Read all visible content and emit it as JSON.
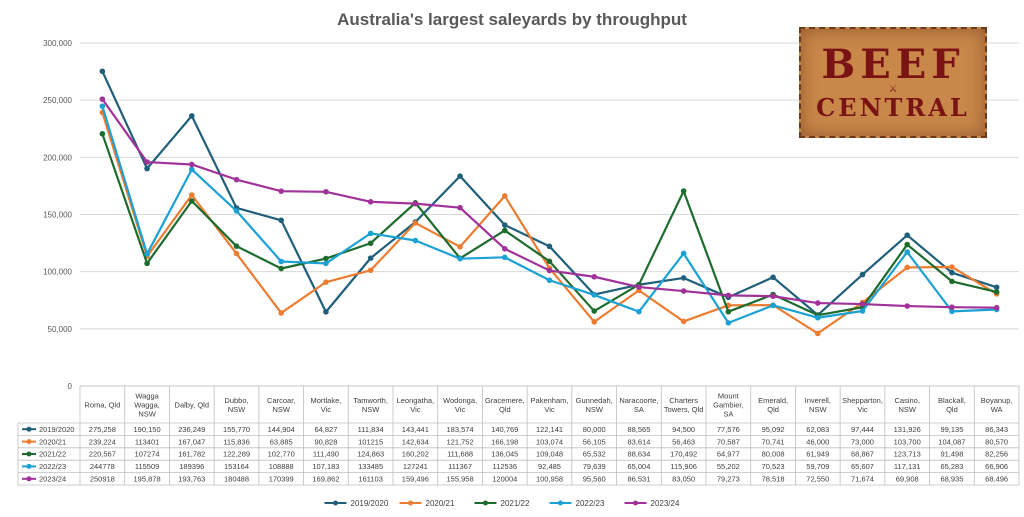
{
  "logo": {
    "line1": "BEEF",
    "line2": "CENTRAL"
  },
  "colors": {
    "2019/2020": "#1f5f7a",
    "2020/21": "#ec7c30",
    "2021/22": "#1e6b2e",
    "2022/23": "#1ba1d3",
    "2023/24": "#a1329a",
    "grid": "#d9d9d9",
    "axis_text": "#595959"
  },
  "chart_data": {
    "type": "line",
    "title": "Australia's largest saleyards by throughput",
    "xlabel": "",
    "ylabel": "",
    "ylim": [
      0,
      300000
    ],
    "yticks": [
      0,
      50000,
      100000,
      150000,
      200000,
      250000,
      300000
    ],
    "ytick_labels": [
      "0",
      "50,000",
      "100,000",
      "150,000",
      "200,000",
      "250,000",
      "300,000"
    ],
    "grid": true,
    "legend": "bottom",
    "categories": [
      "Roma, Qld",
      "Wagga Wagga, NSW",
      "Dalby, Qld",
      "Dubbo, NSW",
      "Carcoar, NSW",
      "Mortlake, Vic",
      "Tamworth, NSW",
      "Leongatha, Vic",
      "Wodonga, Vic",
      "Gracemere, Qld",
      "Pakenham, Vic",
      "Gunnedah, NSW",
      "Naracoorte, SA",
      "Charters Towers, Qld",
      "Mount Gambier, SA",
      "Emerald, Qld",
      "Inverell, NSW",
      "Shepparton, Vic",
      "Casino, NSW",
      "Blackall, Qld",
      "Boyanup, WA"
    ],
    "category_lines": [
      [
        "Roma, Qld"
      ],
      [
        "Wagga",
        "Wagga,",
        "NSW"
      ],
      [
        "Dalby, Qld"
      ],
      [
        "Dubbo,",
        "NSW"
      ],
      [
        "Carcoar,",
        "NSW"
      ],
      [
        "Mortlake,",
        "Vic"
      ],
      [
        "Tamworth,",
        "NSW"
      ],
      [
        "Leongatha,",
        "Vic"
      ],
      [
        "Wodonga,",
        "Vic"
      ],
      [
        "Gracemere,",
        "Qld"
      ],
      [
        "Pakenham,",
        "Vic"
      ],
      [
        "Gunnedah,",
        "NSW"
      ],
      [
        "Naracoorte,",
        "SA"
      ],
      [
        "Charters",
        "Towers, Qld"
      ],
      [
        "Mount",
        "Gambier,",
        "SA"
      ],
      [
        "Emerald,",
        "Qld"
      ],
      [
        "Inverell,",
        "NSW"
      ],
      [
        "Shepparton,",
        "Vic"
      ],
      [
        "Casino,",
        "NSW"
      ],
      [
        "Blackall,",
        "Qld"
      ],
      [
        "Boyanup,",
        "WA"
      ]
    ],
    "series": [
      {
        "name": "2019/2020",
        "values": [
          275258,
          190150,
          236249,
          155770,
          144904,
          64827,
          111834,
          143441,
          183574,
          140769,
          122141,
          80000,
          88565,
          94500,
          77576,
          95092,
          62083,
          97444,
          131926,
          99135,
          86343
        ],
        "labels": [
          "275,258",
          "190,150",
          "236,249",
          "155,770",
          "144,904",
          "64,827",
          "111,834",
          "143,441",
          "183,574",
          "140,769",
          "122,141",
          "80,000",
          "88,565",
          "94,500",
          "77,576",
          "95,092",
          "62,083",
          "97,444",
          "131,926",
          "99,135",
          "86,343"
        ]
      },
      {
        "name": "2020/21",
        "values": [
          239224,
          113401,
          167047,
          115836,
          63885,
          90828,
          101215,
          142634,
          121752,
          166198,
          103074,
          56105,
          83614,
          56463,
          70587,
          70741,
          46000,
          73000,
          103700,
          104087,
          80570
        ],
        "labels": [
          "239,224",
          "113401",
          "167,047",
          "115,836",
          "63,885",
          "90,828",
          "101215",
          "142,634",
          "121,752",
          "166,198",
          "103,074",
          "56,105",
          "83,614",
          "56,463",
          "70,587",
          "70,741",
          "46,000",
          "73,000",
          "103,700",
          "104,087",
          "80,570"
        ]
      },
      {
        "name": "2021/22",
        "values": [
          220567,
          107274,
          161782,
          122289,
          102770,
          111490,
          124863,
          160202,
          111688,
          136045,
          109048,
          65532,
          88634,
          170492,
          64977,
          80008,
          61949,
          68867,
          123713,
          91498,
          82256
        ],
        "labels": [
          "220,567",
          "107274",
          "161,782",
          "122,289",
          "102,770",
          "111,490",
          "124,863",
          "160,202",
          "111,688",
          "136,045",
          "109,048",
          "65,532",
          "88,634",
          "170,492",
          "64,977",
          "80,008",
          "61,949",
          "68,867",
          "123,713",
          "91,498",
          "82,256"
        ]
      },
      {
        "name": "2022/23",
        "values": [
          244778,
          115509,
          189396,
          153164,
          108888,
          107183,
          133485,
          127241,
          111367,
          112536,
          92485,
          79639,
          65004,
          115906,
          55202,
          70523,
          59709,
          65607,
          117131,
          65283,
          66906
        ],
        "labels": [
          "244778",
          "115509",
          "189396",
          "153164",
          "108888",
          "107,183",
          "133485",
          "127241",
          "111367",
          "112536",
          "92,485",
          "79,639",
          "65,004",
          "115,906",
          "55,202",
          "70,523",
          "59,709",
          "65,607",
          "117,131",
          "65,283",
          "66,906"
        ]
      },
      {
        "name": "2023/24",
        "values": [
          250918,
          195878,
          193763,
          180488,
          170399,
          169862,
          161103,
          159496,
          155958,
          120004,
          100958,
          95560,
          86531,
          83050,
          79273,
          78518,
          72550,
          71674,
          69908,
          68935,
          68496
        ],
        "labels": [
          "250918",
          "195,878",
          "193,763",
          "180488",
          "170399",
          "169,862",
          "161103",
          "159,496",
          "155,958",
          "120004",
          "100,958",
          "95,560",
          "86,531",
          "83,050",
          "79,273",
          "78,518",
          "72,550",
          "71,674",
          "69,908",
          "68,935",
          "68,496"
        ]
      }
    ]
  }
}
